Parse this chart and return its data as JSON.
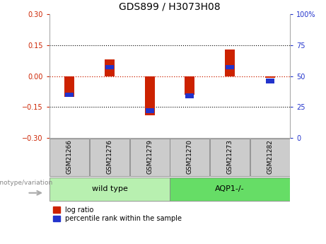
{
  "title": "GDS899 / H3073H08",
  "samples": [
    "GSM21266",
    "GSM21276",
    "GSM21279",
    "GSM21270",
    "GSM21273",
    "GSM21282"
  ],
  "log_ratios": [
    -0.1,
    0.08,
    -0.19,
    -0.09,
    0.13,
    -0.01
  ],
  "percentile_ranks": [
    35,
    57,
    22,
    34,
    57,
    46
  ],
  "wild_type_color": "#b8f0b0",
  "aqp1_color": "#66dd66",
  "ylim": [
    -0.3,
    0.3
  ],
  "yticks_left": [
    -0.3,
    -0.15,
    0,
    0.15,
    0.3
  ],
  "yticks_right": [
    0,
    25,
    50,
    75,
    100
  ],
  "red_color": "#cc2200",
  "blue_color": "#2233cc",
  "zero_line_color": "#cc2200",
  "dotted_line_color": "#000000",
  "sample_box_color": "#cccccc",
  "label_log_ratio": "log ratio",
  "label_percentile": "percentile rank within the sample",
  "group_label": "genotype/variation"
}
